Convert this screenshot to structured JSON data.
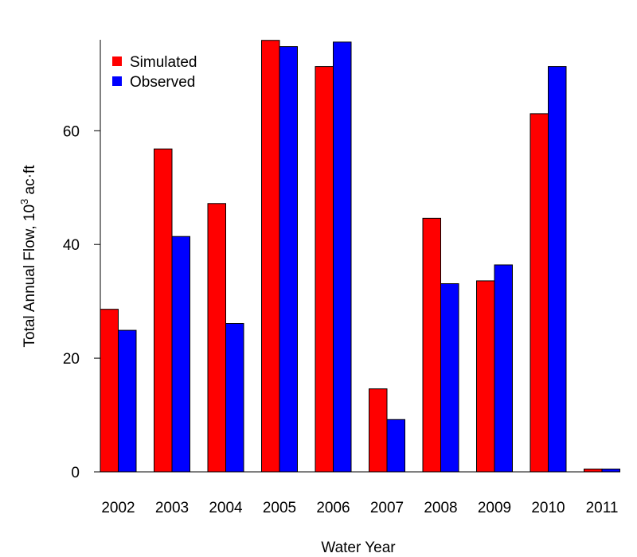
{
  "chart_data": {
    "type": "bar",
    "title": "",
    "xlabel": "Water Year",
    "ylabel": "Total Annual Flow, 10",
    "ylabel_superscript": "3",
    "ylabel_suffix": " ac·ft",
    "categories": [
      "2002",
      "2003",
      "2004",
      "2005",
      "2006",
      "2007",
      "2008",
      "2009",
      "2010",
      "2011"
    ],
    "series": [
      {
        "name": "Simulated",
        "color": "#ff0000",
        "values": [
          28.6,
          56.8,
          47.2,
          75.9,
          71.3,
          14.6,
          44.6,
          33.6,
          63.0,
          0.5
        ]
      },
      {
        "name": "Observed",
        "color": "#0000ff",
        "values": [
          24.9,
          41.4,
          26.1,
          74.8,
          75.6,
          9.2,
          33.1,
          36.4,
          71.3,
          0.5
        ]
      }
    ],
    "ylim": [
      0,
      76
    ],
    "yticks": [
      0,
      20,
      40,
      60
    ],
    "grid": false,
    "legend_position": "top-left"
  }
}
